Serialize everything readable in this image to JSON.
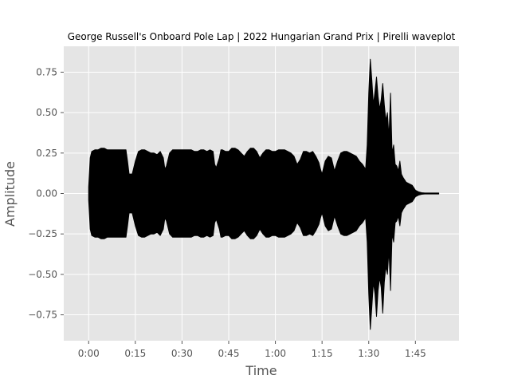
{
  "chart_data": {
    "type": "area",
    "title": "George Russell's Onboard Pole Lap | 2022 Hungarian Grand Prix | Pirelli waveplot",
    "xlabel": "Time",
    "ylabel": "Amplitude",
    "style": "ggplot",
    "grid": true,
    "xlim": [
      -8,
      119
    ],
    "ylim": [
      -0.91,
      0.91
    ],
    "x_ticks": [
      0,
      15,
      30,
      45,
      60,
      75,
      90,
      105
    ],
    "x_tick_labels": [
      "0:00",
      "0:15",
      "0:30",
      "0:45",
      "1:00",
      "1:15",
      "1:30",
      "1:45"
    ],
    "y_ticks": [
      -0.75,
      -0.5,
      -0.25,
      0,
      0.25,
      0.5,
      0.75
    ],
    "y_tick_labels": [
      "−0.75",
      "−0.50",
      "−0.25",
      "0.00",
      "0.25",
      "0.50",
      "0.75"
    ],
    "series": [
      {
        "color": "#000000",
        "x": [
          0,
          0.5,
          1,
          2,
          3,
          4,
          5,
          6,
          7,
          8,
          9,
          10,
          11,
          12,
          12.5,
          13,
          14,
          15,
          16,
          17,
          18,
          19,
          20,
          21,
          22,
          23,
          24,
          24.5,
          25,
          26,
          27,
          28,
          29,
          30,
          31,
          32,
          33,
          34,
          35,
          36,
          37,
          38,
          39,
          40,
          40.5,
          41,
          42,
          42.5,
          43,
          44,
          45,
          46,
          47,
          48,
          49,
          50,
          51,
          52,
          53,
          54,
          55,
          56,
          57,
          58,
          59,
          60,
          61,
          62,
          63,
          64,
          65,
          66,
          67,
          68,
          69,
          70,
          71,
          72,
          73,
          74,
          74.5,
          75,
          76,
          77,
          78,
          79,
          80,
          81,
          82,
          83,
          84,
          85,
          86,
          87,
          88,
          89,
          89.5,
          90,
          90.5,
          91,
          91.5,
          92,
          92.5,
          93,
          93.5,
          94,
          94.5,
          95,
          95.5,
          96,
          96.5,
          97,
          97.5,
          98,
          98.5,
          99,
          99.5,
          100,
          100.5,
          101,
          102,
          103,
          104,
          105,
          106,
          107,
          108,
          109,
          110,
          112.5
        ],
        "y_max": [
          0.04,
          0.22,
          0.26,
          0.27,
          0.27,
          0.28,
          0.28,
          0.27,
          0.27,
          0.27,
          0.27,
          0.27,
          0.27,
          0.27,
          0.2,
          0.12,
          0.12,
          0.2,
          0.26,
          0.27,
          0.27,
          0.26,
          0.25,
          0.25,
          0.24,
          0.26,
          0.22,
          0.15,
          0.17,
          0.25,
          0.27,
          0.27,
          0.27,
          0.27,
          0.27,
          0.27,
          0.27,
          0.26,
          0.26,
          0.27,
          0.27,
          0.26,
          0.27,
          0.26,
          0.18,
          0.16,
          0.22,
          0.27,
          0.27,
          0.26,
          0.26,
          0.28,
          0.28,
          0.27,
          0.25,
          0.23,
          0.26,
          0.28,
          0.28,
          0.26,
          0.22,
          0.25,
          0.27,
          0.27,
          0.26,
          0.26,
          0.27,
          0.27,
          0.27,
          0.26,
          0.25,
          0.23,
          0.18,
          0.21,
          0.26,
          0.26,
          0.25,
          0.26,
          0.23,
          0.19,
          0.15,
          0.12,
          0.2,
          0.23,
          0.22,
          0.14,
          0.2,
          0.25,
          0.26,
          0.26,
          0.25,
          0.24,
          0.23,
          0.2,
          0.18,
          0.15,
          0.3,
          0.62,
          0.83,
          0.7,
          0.55,
          0.63,
          0.72,
          0.6,
          0.52,
          0.58,
          0.68,
          0.55,
          0.45,
          0.5,
          0.35,
          0.62,
          0.25,
          0.3,
          0.18,
          0.17,
          0.14,
          0.2,
          0.12,
          0.1,
          0.07,
          0.06,
          0.05,
          0.02,
          0.01,
          0.005,
          0.003,
          0.003,
          0.003,
          0.003,
          0.003,
          0.003
        ],
        "y_min": [
          -0.04,
          -0.22,
          -0.26,
          -0.27,
          -0.27,
          -0.28,
          -0.28,
          -0.27,
          -0.27,
          -0.27,
          -0.27,
          -0.27,
          -0.27,
          -0.27,
          -0.2,
          -0.12,
          -0.12,
          -0.2,
          -0.26,
          -0.27,
          -0.27,
          -0.26,
          -0.25,
          -0.25,
          -0.24,
          -0.26,
          -0.22,
          -0.15,
          -0.17,
          -0.25,
          -0.27,
          -0.27,
          -0.27,
          -0.27,
          -0.27,
          -0.27,
          -0.27,
          -0.26,
          -0.26,
          -0.27,
          -0.27,
          -0.26,
          -0.27,
          -0.26,
          -0.18,
          -0.16,
          -0.22,
          -0.27,
          -0.27,
          -0.26,
          -0.26,
          -0.28,
          -0.28,
          -0.27,
          -0.25,
          -0.23,
          -0.26,
          -0.28,
          -0.28,
          -0.26,
          -0.22,
          -0.25,
          -0.27,
          -0.27,
          -0.26,
          -0.26,
          -0.27,
          -0.27,
          -0.27,
          -0.26,
          -0.25,
          -0.23,
          -0.18,
          -0.21,
          -0.26,
          -0.26,
          -0.25,
          -0.26,
          -0.23,
          -0.19,
          -0.15,
          -0.12,
          -0.2,
          -0.23,
          -0.22,
          -0.14,
          -0.2,
          -0.25,
          -0.26,
          -0.26,
          -0.25,
          -0.24,
          -0.23,
          -0.2,
          -0.18,
          -0.15,
          -0.3,
          -0.62,
          -0.84,
          -0.7,
          -0.55,
          -0.62,
          -0.76,
          -0.6,
          -0.52,
          -0.58,
          -0.74,
          -0.55,
          -0.45,
          -0.5,
          -0.35,
          -0.6,
          -0.25,
          -0.3,
          -0.18,
          -0.17,
          -0.14,
          -0.2,
          -0.12,
          -0.1,
          -0.07,
          -0.06,
          -0.05,
          -0.02,
          -0.01,
          -0.005,
          -0.003,
          -0.003,
          -0.003,
          -0.003,
          -0.003,
          -0.003
        ]
      }
    ]
  }
}
